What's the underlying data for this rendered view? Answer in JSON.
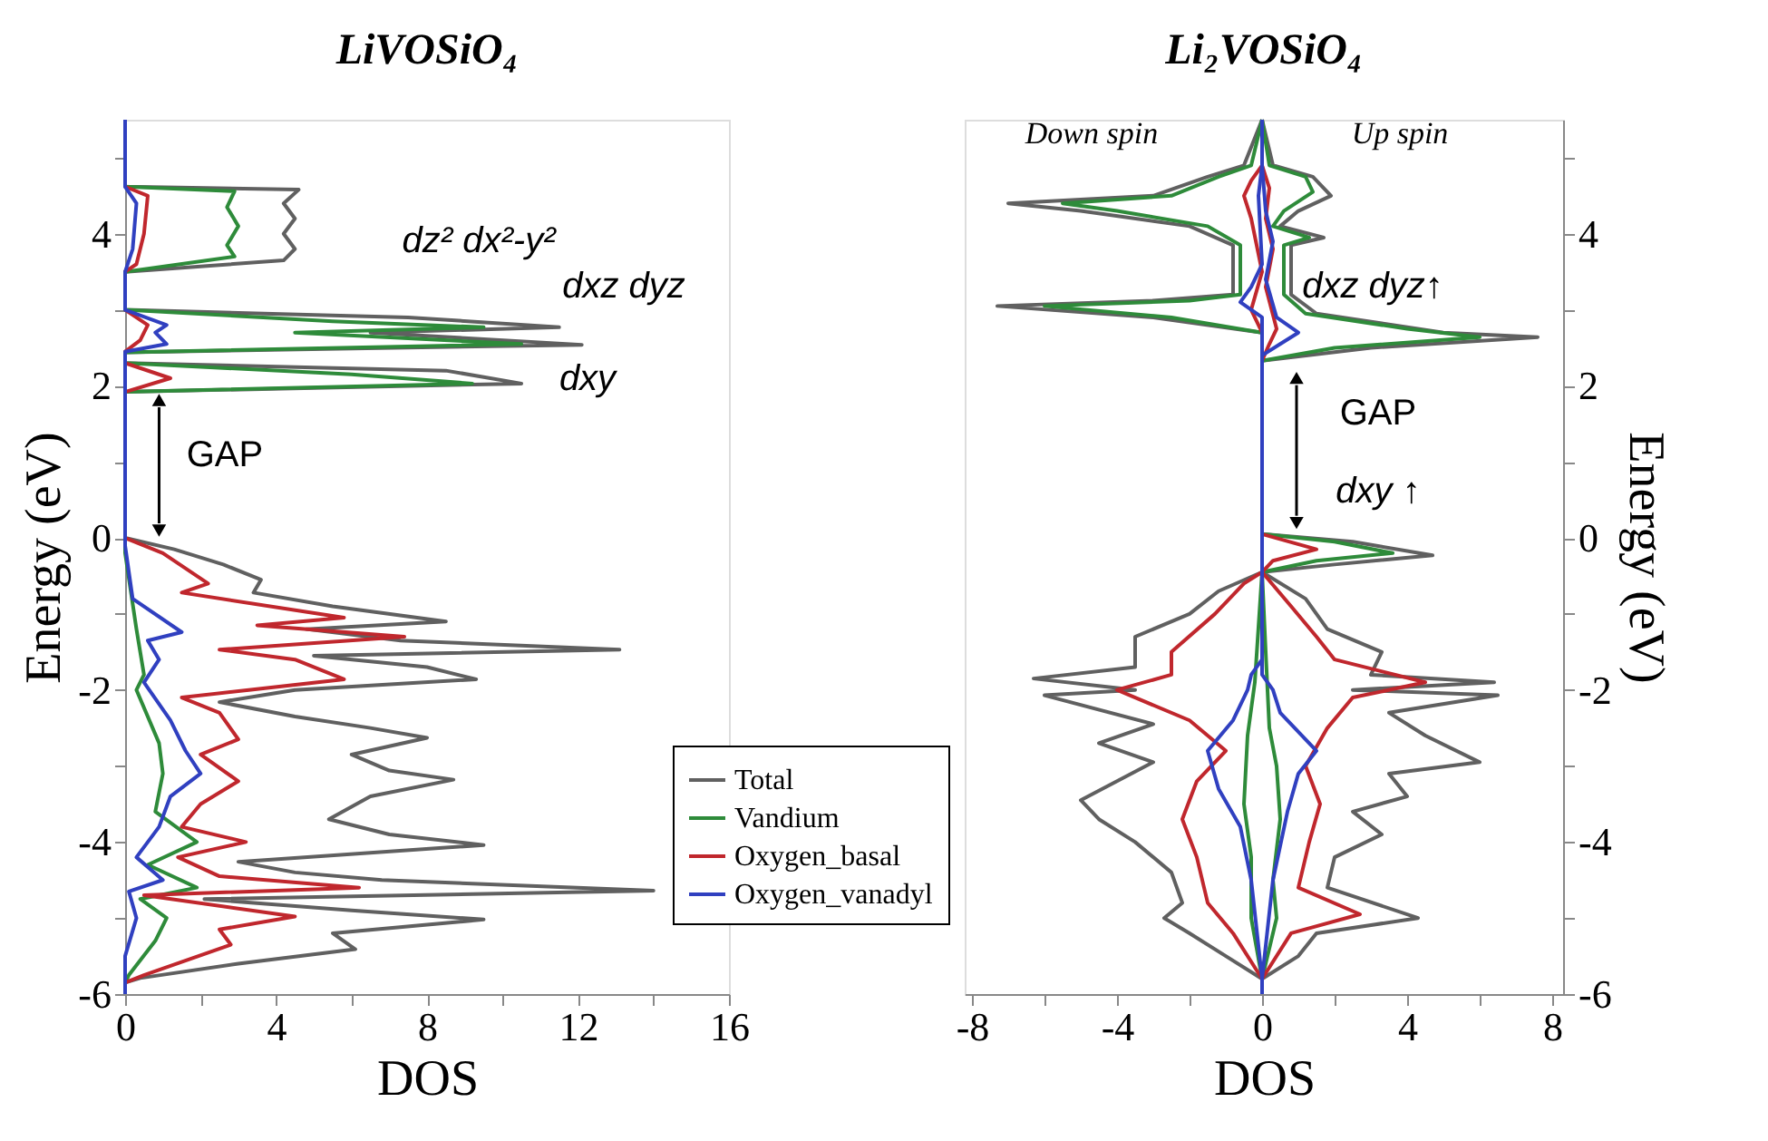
{
  "chart_data": [
    {
      "type": "line",
      "title": "LiVOSiO₄",
      "xlabel": "DOS",
      "ylabel": "Energy (eV)",
      "legend": "bottom right",
      "xlim": [
        0,
        16
      ],
      "xticks": [
        0,
        {
          "value": 2,
          "label": null
        },
        4,
        {
          "value": 6,
          "label": null
        },
        8,
        {
          "value": 10,
          "label": null
        },
        12,
        {
          "value": 14,
          "label": null
        },
        16
      ],
      "ylim": [
        -6,
        5.5
      ],
      "yticks": [
        -6,
        {
          "value": -5,
          "label": null
        },
        -4,
        {
          "value": -3,
          "label": null
        },
        -2,
        {
          "value": -1,
          "label": null
        },
        0,
        {
          "value": 1,
          "label": null
        },
        2,
        {
          "value": 3,
          "label": null
        },
        4,
        {
          "value": 5,
          "label": null
        }
      ],
      "series": [
        {
          "name": "Total",
          "color": "#606060",
          "x": [
            0,
            0,
            4.6,
            4.2,
            4.5,
            4.2,
            4.5,
            4.2,
            0,
            0,
            7.5,
            11.5,
            6.5,
            12.1,
            0,
            0,
            8.5,
            10.5,
            0,
            0,
            1.3,
            2.6,
            3.6,
            3.4,
            5.5,
            8.5,
            4.8,
            7.3,
            13.1,
            5,
            8,
            9.3,
            4.5,
            2.5,
            4.5,
            6.5,
            8.0,
            6,
            7,
            8.7,
            6.5,
            5.4,
            7,
            9.5,
            3.0,
            4.5,
            6.8,
            14.0,
            2.1,
            6,
            9.5,
            5.5,
            6.1,
            3,
            0.4,
            0,
            0
          ],
          "values": [
            5.5,
            4.62,
            4.58,
            4.4,
            4.2,
            4.0,
            3.8,
            3.65,
            3.5,
            3.0,
            2.9,
            2.77,
            2.7,
            2.54,
            2.44,
            2.3,
            2.2,
            2.03,
            1.92,
            0,
            -0.15,
            -0.35,
            -0.55,
            -0.72,
            -0.9,
            -1.1,
            -1.2,
            -1.35,
            -1.47,
            -1.55,
            -1.7,
            -1.86,
            -2.0,
            -2.16,
            -2.35,
            -2.5,
            -2.63,
            -2.85,
            -3.06,
            -3.18,
            -3.4,
            -3.7,
            -3.9,
            -4.04,
            -4.26,
            -4.4,
            -4.5,
            -4.64,
            -4.75,
            -4.9,
            -5.02,
            -5.2,
            -5.41,
            -5.6,
            -5.79,
            -5.85,
            -6
          ]
        },
        {
          "name": "Vandium",
          "color": "#2e8b3a",
          "x": [
            0,
            2.9,
            2.7,
            3.0,
            2.7,
            2.9,
            0,
            0,
            5.5,
            9.5,
            4.5,
            10.5,
            0,
            0,
            6,
            9.2,
            0,
            0,
            0.3,
            0.5,
            0.3,
            0.9,
            1.0,
            0.8,
            1.9,
            0.6,
            1.9,
            0.4,
            1.1,
            0.8,
            0.1,
            0
          ],
          "values": [
            4.62,
            4.56,
            4.35,
            4.1,
            3.85,
            3.7,
            3.5,
            3.0,
            2.85,
            2.77,
            2.7,
            2.55,
            2.44,
            2.3,
            2.15,
            2.03,
            1.92,
            -0.2,
            -1.2,
            -1.8,
            -2.0,
            -2.7,
            -3.1,
            -3.6,
            -4.0,
            -4.3,
            -4.6,
            -4.75,
            -5.0,
            -5.3,
            -5.75,
            -5.85
          ]
        },
        {
          "name": "Oxygen_basal",
          "color": "#c0272d",
          "x": [
            0,
            0.6,
            0.5,
            0.3,
            0,
            0,
            0.6,
            0.4,
            0,
            0,
            1.2,
            0,
            0,
            1,
            2.2,
            1.5,
            5.8,
            3.5,
            7.4,
            2.5,
            4.5,
            5.8,
            1.5,
            2.5,
            3,
            2,
            3,
            2,
            1.5,
            3.2,
            1.4,
            2.5,
            6.2,
            0.5,
            4.5,
            2.5,
            2.8,
            0.5,
            0
          ],
          "values": [
            4.62,
            4.5,
            4.0,
            3.6,
            3.5,
            3.0,
            2.8,
            2.6,
            2.45,
            2.3,
            2.1,
            1.92,
            0,
            -0.2,
            -0.6,
            -0.72,
            -1.05,
            -1.15,
            -1.3,
            -1.47,
            -1.6,
            -1.86,
            -2.1,
            -2.3,
            -2.65,
            -2.85,
            -3.2,
            -3.5,
            -3.8,
            -4.0,
            -4.2,
            -4.45,
            -4.6,
            -4.7,
            -4.98,
            -5.15,
            -5.35,
            -5.75,
            -5.85
          ]
        },
        {
          "name": "Oxygen_vanadyl",
          "color": "#3040c0",
          "x": [
            0,
            0,
            0.3,
            0.2,
            0,
            0,
            1.1,
            0.8,
            1.1,
            0,
            0,
            0.2,
            1.5,
            0.6,
            0.9,
            0.5,
            1.2,
            1.6,
            2.0,
            1.2,
            0.9,
            0.3,
            1.0,
            0.1,
            0.3,
            0,
            0
          ],
          "values": [
            5.5,
            4.62,
            4.4,
            3.8,
            3.5,
            3.0,
            2.8,
            2.7,
            2.55,
            2.45,
            -0.1,
            -0.8,
            -1.24,
            -1.35,
            -1.6,
            -1.9,
            -2.4,
            -2.8,
            -3.1,
            -3.4,
            -3.8,
            -4.2,
            -4.5,
            -4.65,
            -5.0,
            -5.5,
            -6
          ]
        }
      ],
      "annotations": [
        "dz² dx²-y²",
        "dxz dyz",
        "dxy",
        {
          "text": "GAP",
          "x": 0.9,
          "y": 0
        }
      ]
    },
    {
      "type": "line",
      "title": "Li₂VOSiO₄",
      "xlabel": "DOS",
      "ylabel": "Energy (eV)",
      "xlim": [
        -8.2,
        8.3
      ],
      "xticks": [
        -8,
        {
          "value": -6,
          "label": null
        },
        -4,
        {
          "value": -2,
          "label": null
        },
        0,
        {
          "value": 2,
          "label": null
        },
        4,
        {
          "value": 6,
          "label": null
        },
        8
      ],
      "ylim": [
        -6,
        5.5
      ],
      "yticks": [
        -6,
        {
          "value": -5,
          "label": null
        },
        -4,
        {
          "value": -3,
          "label": null
        },
        -2,
        {
          "value": -1,
          "label": null
        },
        0,
        {
          "value": 1,
          "label": null
        },
        2,
        {
          "value": 3,
          "label": null
        },
        4,
        {
          "value": 5,
          "label": null
        }
      ],
      "series": [
        {
          "color": "#606060",
          "x": [
            0,
            0.3,
            1.4,
            1.9,
            1.0,
            0.5,
            1.7,
            0.8,
            0.8,
            1.5,
            5,
            7.6,
            3,
            0,
            0,
            2.5,
            4.7,
            2,
            0,
            1.2,
            1.8,
            3.3,
            3,
            6.4,
            2.5,
            6.5,
            3.5,
            4.5,
            6.0,
            3.5,
            4,
            2.5,
            3.3,
            2,
            1.8,
            4.3,
            1.5,
            1.0,
            0
          ],
          "values": [
            5.5,
            4.9,
            4.75,
            4.5,
            4.3,
            4.1,
            3.95,
            3.85,
            3.2,
            2.95,
            2.7,
            2.64,
            2.5,
            2.33,
            0.05,
            -0.05,
            -0.23,
            -0.35,
            -0.45,
            -0.8,
            -1.2,
            -1.5,
            -1.8,
            -1.9,
            -2.0,
            -2.07,
            -2.3,
            -2.6,
            -2.95,
            -3.1,
            -3.4,
            -3.6,
            -3.9,
            -4.2,
            -4.6,
            -5.0,
            -5.2,
            -5.5,
            -5.8
          ]
        },
        {
          "color": "#606060",
          "x": [
            0,
            -0.5,
            -1.5,
            -3,
            -7,
            -5,
            -2,
            -0.8,
            -0.8,
            -3,
            -7.3,
            -3,
            0,
            0,
            -1.2,
            -2,
            -3.5,
            -3.5,
            -6.3,
            -3.5,
            -6.0,
            -3,
            -4.5,
            -3,
            -4,
            -5.0,
            -4.5,
            -3.5,
            -2.5,
            -2.2,
            -2.7,
            -2,
            -1.0,
            0
          ],
          "values": [
            5.5,
            4.9,
            4.75,
            4.5,
            4.4,
            4.3,
            4.1,
            3.85,
            3.2,
            3.12,
            3.05,
            2.9,
            2.7,
            -0.45,
            -0.7,
            -1.0,
            -1.3,
            -1.7,
            -1.85,
            -2.0,
            -2.07,
            -2.45,
            -2.7,
            -2.95,
            -3.2,
            -3.45,
            -3.7,
            -4.0,
            -4.4,
            -4.8,
            -5.0,
            -5.2,
            -5.5,
            -5.8
          ]
        },
        {
          "color": "#2e8b3a",
          "x": [
            0,
            0.2,
            1.2,
            1.4,
            0.6,
            0.3,
            1.3,
            0.6,
            0.6,
            1.2,
            4,
            6.0,
            2,
            0,
            0,
            2,
            3.6,
            1.5,
            0,
            0.1,
            0.2,
            0.4,
            0.5,
            0.3,
            0.4,
            0
          ],
          "values": [
            5.5,
            4.9,
            4.75,
            4.55,
            4.3,
            4.1,
            3.95,
            3.85,
            3.2,
            2.95,
            2.75,
            2.64,
            2.5,
            2.33,
            0.05,
            -0.05,
            -0.2,
            -0.3,
            -0.45,
            -1.5,
            -2.5,
            -3.0,
            -3.7,
            -4.5,
            -5.0,
            -5.8
          ]
        },
        {
          "color": "#2e8b3a",
          "x": [
            0,
            -0.3,
            -1.2,
            -2.5,
            -5.5,
            -4,
            -1.5,
            -0.6,
            -0.6,
            -2,
            -6.0,
            -2.5,
            0,
            0,
            -0.2,
            -0.4,
            -0.5,
            -0.3,
            -0.3,
            0
          ],
          "values": [
            5.5,
            4.9,
            4.75,
            4.5,
            4.4,
            4.3,
            4.1,
            3.85,
            3.2,
            3.12,
            3.05,
            2.9,
            2.7,
            -0.45,
            -1.9,
            -2.6,
            -3.5,
            -4.2,
            -5.0,
            -5.8
          ]
        },
        {
          "color": "#c0272d",
          "x": [
            0,
            0.2,
            0.1,
            0.3,
            0.1,
            0.4,
            0.2,
            0,
            0,
            1.5,
            0.3,
            0,
            0.8,
            1.5,
            2,
            4.5,
            2.5,
            1.8,
            1.2,
            1.6,
            1.3,
            1.0,
            2.7,
            0.8,
            0
          ],
          "values": [
            4.9,
            4.6,
            4.2,
            3.8,
            3.3,
            2.75,
            2.55,
            2.33,
            0.05,
            -0.15,
            -0.3,
            -0.45,
            -0.9,
            -1.3,
            -1.6,
            -1.9,
            -2.1,
            -2.5,
            -3.0,
            -3.5,
            -4.0,
            -4.6,
            -4.95,
            -5.2,
            -5.8
          ]
        },
        {
          "color": "#c0272d",
          "x": [
            0,
            -0.3,
            -0.5,
            -0.3,
            0,
            -0.3,
            0,
            0,
            -0.5,
            -1.3,
            -2.5,
            -2.5,
            -4.0,
            -2.0,
            -1.0,
            -1.8,
            -2.2,
            -1.8,
            -1.5,
            -0.8,
            0
          ],
          "values": [
            4.9,
            4.7,
            4.5,
            4.2,
            3.5,
            3.0,
            2.7,
            -0.45,
            -0.6,
            -1.0,
            -1.5,
            -1.8,
            -2.0,
            -2.4,
            -2.8,
            -3.2,
            -3.7,
            -4.2,
            -4.8,
            -5.2,
            -5.8
          ]
        },
        {
          "color": "#3040c0",
          "x": [
            0,
            0,
            0.1,
            0.3,
            0.1,
            0.4,
            1.0,
            0.5,
            0,
            0,
            0.3,
            0.5,
            1.5,
            1.0,
            0.7,
            0.3,
            0,
            0
          ],
          "values": [
            5.5,
            4.9,
            4.3,
            3.9,
            3.4,
            2.9,
            2.7,
            2.55,
            2.4,
            -1.8,
            -2.0,
            -2.3,
            -2.8,
            -3.1,
            -3.6,
            -4.5,
            -5.8,
            -6
          ]
        },
        {
          "color": "#3040c0",
          "x": [
            0,
            -0.1,
            0,
            -0.3,
            -0.6,
            0,
            0,
            -0.3,
            -0.4,
            -0.8,
            -1.5,
            -1.2,
            -0.6,
            -0.3,
            0
          ],
          "values": [
            4.9,
            4.5,
            3.6,
            3.3,
            3.1,
            2.9,
            -1.6,
            -1.8,
            -2.0,
            -2.4,
            -2.8,
            -3.3,
            -3.8,
            -4.5,
            -5.8
          ]
        }
      ],
      "annotations": [
        "Down spin",
        "Up spin",
        "dxz dyz↑",
        {
          "text": "GAP",
          "x": 0.95,
          "y": 0.1
        },
        "dxy ↑"
      ]
    }
  ]
}
